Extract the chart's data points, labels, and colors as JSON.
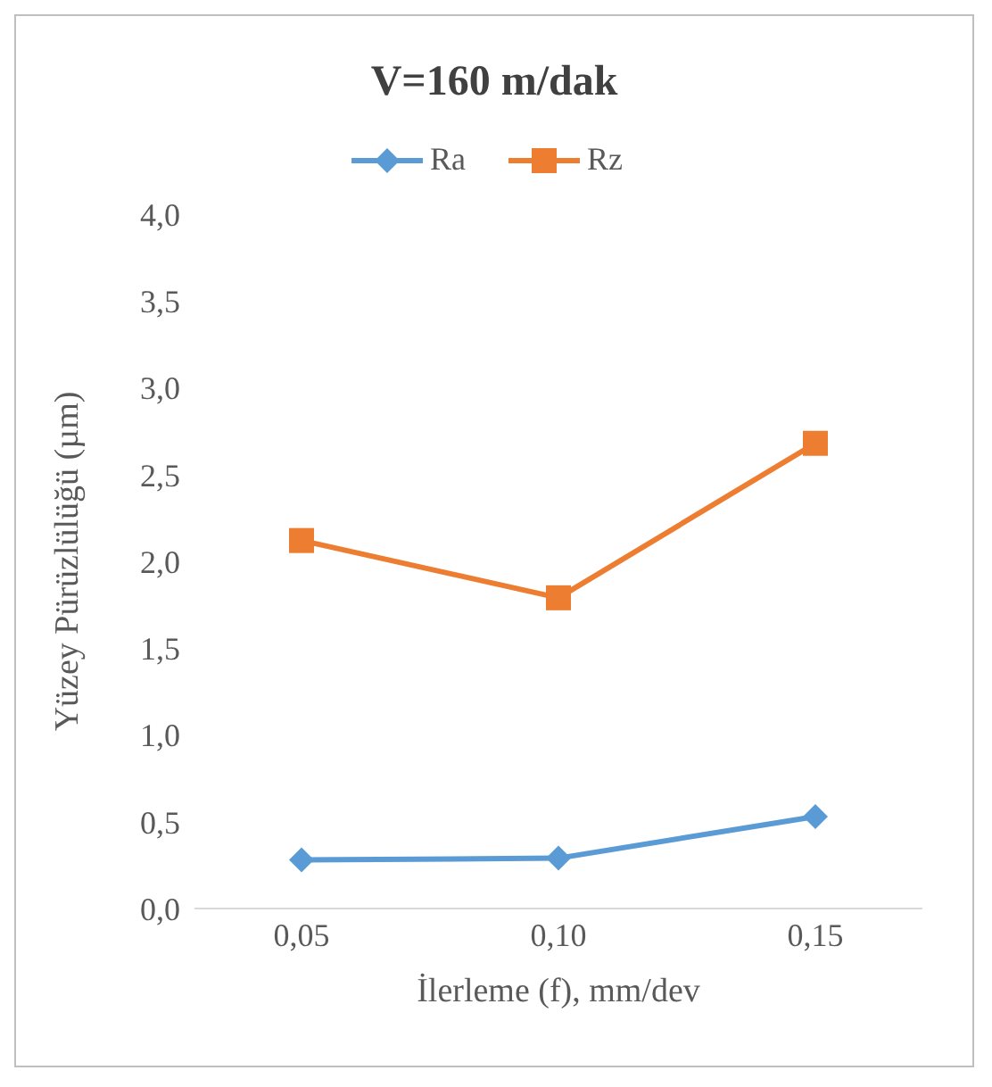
{
  "chart_data": {
    "type": "line",
    "title": "V=160 m/dak",
    "xlabel": "İlerleme (f), mm/dev",
    "ylabel": "Yüzey Pürüzlülüğü (µm)",
    "categories": [
      "0,05",
      "0,10",
      "0,15"
    ],
    "series": [
      {
        "name": "Ra",
        "color": "#5b9bd5",
        "marker": "diamond",
        "values": [
          0.28,
          0.29,
          0.53
        ]
      },
      {
        "name": "Rz",
        "color": "#ed7d31",
        "marker": "square",
        "values": [
          2.12,
          1.79,
          2.68
        ]
      }
    ],
    "ylim": [
      0,
      4
    ],
    "yticks": [
      {
        "value": 0,
        "label": "0,0"
      },
      {
        "value": 0.5,
        "label": "0,5"
      },
      {
        "value": 1,
        "label": "1,0"
      },
      {
        "value": 1.5,
        "label": "1,5"
      },
      {
        "value": 2,
        "label": "2,0"
      },
      {
        "value": 2.5,
        "label": "2,5"
      },
      {
        "value": 3,
        "label": "3,0"
      },
      {
        "value": 3.5,
        "label": "3,5"
      },
      {
        "value": 4,
        "label": "4,0"
      }
    ],
    "grid": false,
    "legend": "top",
    "line_style": "solid"
  }
}
